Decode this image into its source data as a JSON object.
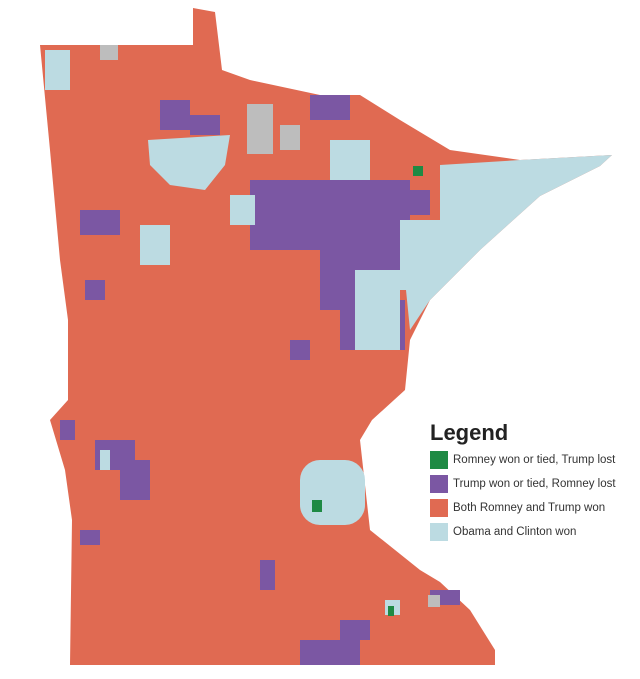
{
  "legend": {
    "title": "Legend",
    "items": [
      {
        "label": "Romney won or tied, Trump lost",
        "color": "#1e8a44"
      },
      {
        "label": "Trump won or tied, Romney lost",
        "color": "#7b57a3"
      },
      {
        "label": "Both Romney and Trump won",
        "color": "#e06a52"
      },
      {
        "label": "Obama and Clinton won",
        "color": "#bcdbe2"
      }
    ]
  }
}
